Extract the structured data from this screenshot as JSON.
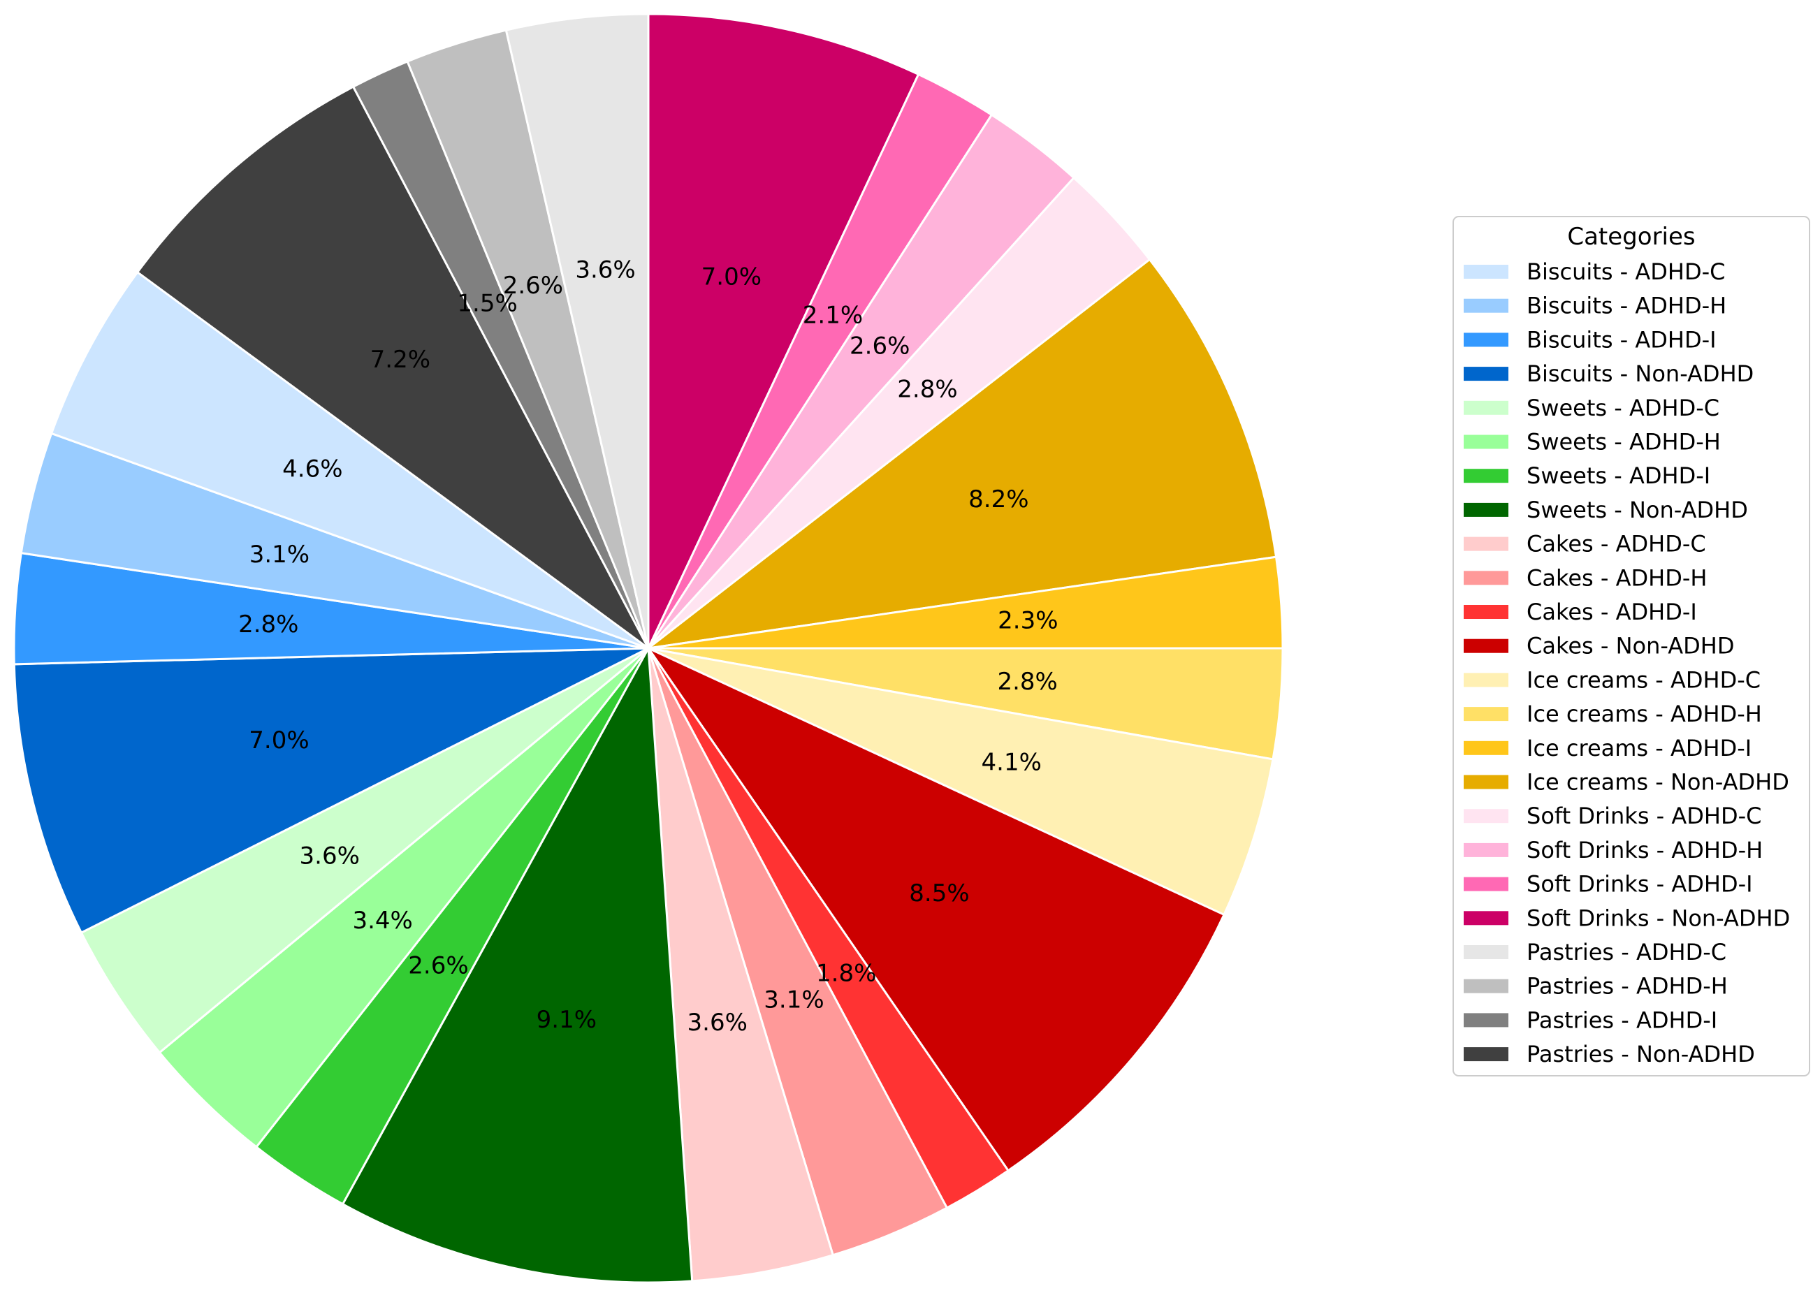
{
  "chart_data": {
    "type": "pie",
    "title": "",
    "legend_title": "Categories",
    "legend_placement": "right",
    "start_angle_deg": 90,
    "direction": "clockwise",
    "slices": [
      {
        "label": "Soft Drinks - Non-ADHD",
        "value": 7.0,
        "color": "#CC0066"
      },
      {
        "label": "Soft Drinks - ADHD-I",
        "value": 2.1,
        "color": "#FF69B4"
      },
      {
        "label": "Soft Drinks - ADHD-H",
        "value": 2.6,
        "color": "#FFB3DA"
      },
      {
        "label": "Soft Drinks - ADHD-C",
        "value": 2.8,
        "color": "#FFE4F1"
      },
      {
        "label": "Ice creams - Non-ADHD",
        "value": 8.2,
        "color": "#E6AC00"
      },
      {
        "label": "Ice creams - ADHD-I",
        "value": 2.3,
        "color": "#FFC61A"
      },
      {
        "label": "Ice creams - ADHD-H",
        "value": 2.8,
        "color": "#FFE066"
      },
      {
        "label": "Ice creams - ADHD-C",
        "value": 4.1,
        "color": "#FFF0B3"
      },
      {
        "label": "Cakes - Non-ADHD",
        "value": 8.5,
        "color": "#CC0000"
      },
      {
        "label": "Cakes - ADHD-I",
        "value": 1.8,
        "color": "#FF3333"
      },
      {
        "label": "Cakes - ADHD-H",
        "value": 3.1,
        "color": "#FF9999"
      },
      {
        "label": "Cakes - ADHD-C",
        "value": 3.6,
        "color": "#FFCCCC"
      },
      {
        "label": "Sweets - Non-ADHD",
        "value": 9.1,
        "color": "#006600"
      },
      {
        "label": "Sweets - ADHD-I",
        "value": 2.6,
        "color": "#33CC33"
      },
      {
        "label": "Sweets - ADHD-H",
        "value": 3.4,
        "color": "#99FF99"
      },
      {
        "label": "Sweets - ADHD-C",
        "value": 3.6,
        "color": "#CCFFCC"
      },
      {
        "label": "Biscuits - Non-ADHD",
        "value": 7.0,
        "color": "#0066CC"
      },
      {
        "label": "Biscuits - ADHD-I",
        "value": 2.8,
        "color": "#3399FF"
      },
      {
        "label": "Biscuits - ADHD-H",
        "value": 3.1,
        "color": "#99CCFF"
      },
      {
        "label": "Biscuits - ADHD-C",
        "value": 4.6,
        "color": "#CCE5FF"
      },
      {
        "label": "Pastries - Non-ADHD",
        "value": 7.2,
        "color": "#404040"
      },
      {
        "label": "Pastries - ADHD-I",
        "value": 1.5,
        "color": "#808080"
      },
      {
        "label": "Pastries - ADHD-H",
        "value": 2.6,
        "color": "#BFBFBF"
      },
      {
        "label": "Pastries - ADHD-C",
        "value": 3.6,
        "color": "#E6E6E6"
      }
    ],
    "legend_entries": [
      "Biscuits - ADHD-C",
      "Biscuits - ADHD-H",
      "Biscuits - ADHD-I",
      "Biscuits - Non-ADHD",
      "Sweets - ADHD-C",
      "Sweets - ADHD-H",
      "Sweets - ADHD-I",
      "Sweets - Non-ADHD",
      "Cakes - ADHD-C",
      "Cakes - ADHD-H",
      "Cakes - ADHD-I",
      "Cakes - Non-ADHD",
      "Ice creams - ADHD-C",
      "Ice creams - ADHD-H",
      "Ice creams - ADHD-I",
      "Ice creams - Non-ADHD",
      "Soft Drinks - ADHD-C",
      "Soft Drinks - ADHD-H",
      "Soft Drinks - ADHD-I",
      "Soft Drinks - Non-ADHD",
      "Pastries - ADHD-C",
      "Pastries - ADHD-H",
      "Pastries - ADHD-I",
      "Pastries - Non-ADHD"
    ]
  }
}
